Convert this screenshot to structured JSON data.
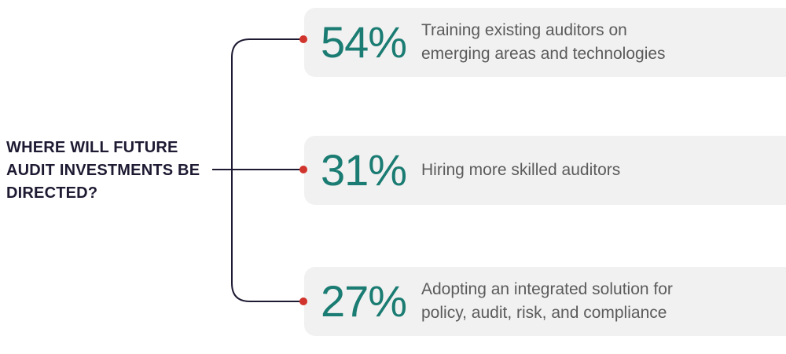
{
  "question": {
    "lines": [
      "WHERE WILL FUTURE",
      "AUDIT INVESTMENTS BE",
      "DIRECTED?"
    ]
  },
  "items": [
    {
      "percent": "54%",
      "lines": [
        "Training existing auditors on",
        "emerging areas and technologies"
      ]
    },
    {
      "percent": "31%",
      "lines": [
        "Hiring more skilled auditors"
      ]
    },
    {
      "percent": "27%",
      "lines": [
        "Adopting an integrated solution for",
        "policy, audit, risk, and compliance"
      ]
    }
  ],
  "colors": {
    "percent": "#1a7c72",
    "dot": "#d0342c",
    "line": "#1d1a32",
    "card": "#f2f1f1",
    "text": "#5b5b5b",
    "question": "#1d1a32"
  }
}
